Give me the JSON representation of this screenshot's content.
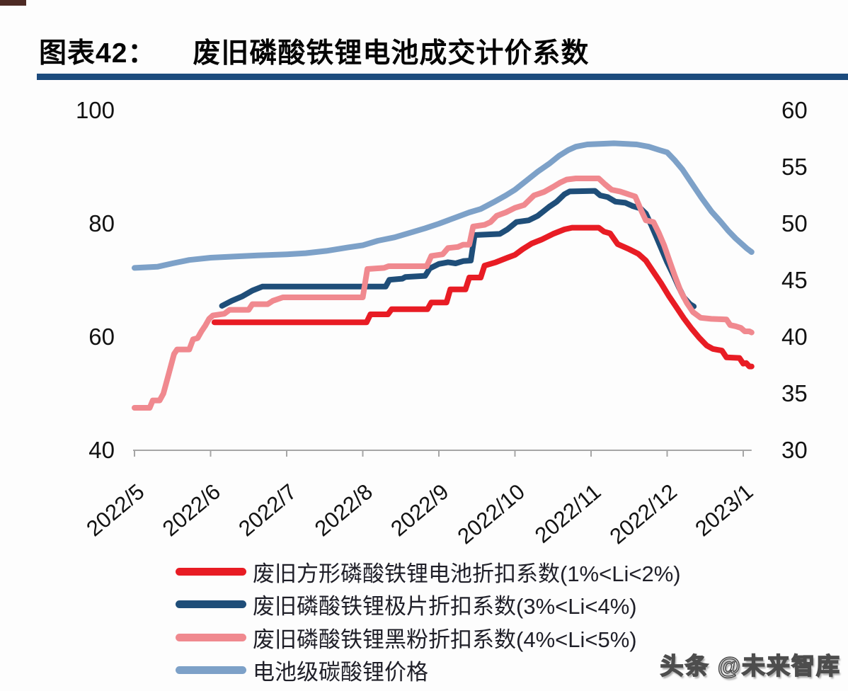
{
  "title": {
    "prefix": "图表42：",
    "text": "废旧磷酸铁锂电池成交计价系数"
  },
  "watermark": "头条 @未来智库",
  "chart_data": {
    "type": "line",
    "title": "废旧磷酸铁锂电池成交计价系数",
    "grid": false,
    "legend_position": "bottom-left",
    "x_axis": {
      "tick_labels": [
        "2022/5",
        "2022/6",
        "2022/7",
        "2022/8",
        "2022/9",
        "2022/10",
        "2022/11",
        "2022/12",
        "2023/1"
      ]
    },
    "left_axis": {
      "ticks": [
        "40",
        "60",
        "80",
        "100"
      ],
      "tick_values": [
        40,
        60,
        80,
        100
      ],
      "range": [
        40,
        100
      ]
    },
    "right_axis": {
      "ticks": [
        "30",
        "35",
        "40",
        "45",
        "50",
        "55",
        "60"
      ],
      "tick_values": [
        30,
        35,
        40,
        45,
        50,
        55,
        60
      ],
      "range": [
        30,
        60
      ]
    },
    "series": [
      {
        "name": "废旧方形磷酸铁锂电池折扣系数(1%<Li<2%)",
        "color": "#e81c24",
        "axis": "left",
        "points": [
          [
            1.05,
            62.6
          ],
          [
            3.05,
            62.6
          ],
          [
            3.1,
            64.0
          ],
          [
            3.33,
            64.0
          ],
          [
            3.38,
            64.9
          ],
          [
            3.85,
            64.9
          ],
          [
            3.9,
            66.1
          ],
          [
            4.1,
            66.1
          ],
          [
            4.15,
            68.4
          ],
          [
            4.35,
            68.4
          ],
          [
            4.4,
            70.5
          ],
          [
            4.55,
            70.5
          ],
          [
            4.6,
            72.6
          ],
          [
            4.75,
            73.2
          ],
          [
            4.9,
            74.0
          ],
          [
            5.0,
            74.5
          ],
          [
            5.1,
            75.5
          ],
          [
            5.22,
            76.5
          ],
          [
            5.35,
            77.2
          ],
          [
            5.5,
            78.2
          ],
          [
            5.65,
            79.0
          ],
          [
            5.75,
            79.3
          ],
          [
            6.1,
            79.3
          ],
          [
            6.17,
            78.6
          ],
          [
            6.25,
            78.3
          ],
          [
            6.35,
            76.4
          ],
          [
            6.5,
            75.5
          ],
          [
            6.62,
            74.7
          ],
          [
            6.72,
            73.5
          ],
          [
            6.82,
            71.5
          ],
          [
            6.92,
            69.5
          ],
          [
            7.02,
            67.3
          ],
          [
            7.12,
            65.3
          ],
          [
            7.22,
            63.3
          ],
          [
            7.32,
            61.5
          ],
          [
            7.42,
            59.9
          ],
          [
            7.52,
            58.5
          ],
          [
            7.6,
            57.9
          ],
          [
            7.72,
            57.6
          ],
          [
            7.78,
            56.4
          ],
          [
            7.95,
            56.3
          ],
          [
            8.0,
            55.3
          ],
          [
            8.04,
            55.4
          ],
          [
            8.08,
            54.8
          ],
          [
            8.11,
            54.8
          ]
        ]
      },
      {
        "name": "废旧磷酸铁锂极片折扣系数(3%<Li<4%)",
        "color": "#1f4e79",
        "axis": "left",
        "points": [
          [
            1.15,
            65.5
          ],
          [
            1.28,
            66.4
          ],
          [
            1.42,
            67.2
          ],
          [
            1.55,
            68.2
          ],
          [
            1.68,
            68.9
          ],
          [
            3.3,
            68.9
          ],
          [
            3.35,
            70.1
          ],
          [
            3.52,
            70.3
          ],
          [
            3.56,
            70.6
          ],
          [
            3.82,
            70.8
          ],
          [
            3.88,
            72.1
          ],
          [
            4.0,
            72.9
          ],
          [
            4.12,
            73.2
          ],
          [
            4.22,
            73.0
          ],
          [
            4.32,
            73.4
          ],
          [
            4.42,
            73.5
          ],
          [
            4.47,
            78.0
          ],
          [
            4.8,
            78.2
          ],
          [
            4.9,
            79.0
          ],
          [
            5.02,
            80.3
          ],
          [
            5.18,
            80.6
          ],
          [
            5.3,
            81.4
          ],
          [
            5.45,
            83.0
          ],
          [
            5.55,
            83.9
          ],
          [
            5.65,
            85.2
          ],
          [
            5.72,
            85.7
          ],
          [
            6.05,
            85.8
          ],
          [
            6.12,
            85.0
          ],
          [
            6.22,
            84.7
          ],
          [
            6.32,
            83.9
          ],
          [
            6.45,
            83.7
          ],
          [
            6.55,
            83.1
          ],
          [
            6.65,
            82.7
          ],
          [
            6.72,
            81.8
          ],
          [
            6.79,
            79.8
          ],
          [
            6.86,
            77.6
          ],
          [
            6.93,
            75.4
          ],
          [
            7.0,
            73.2
          ],
          [
            7.08,
            71.0
          ],
          [
            7.15,
            68.9
          ],
          [
            7.22,
            67.0
          ],
          [
            7.3,
            65.8
          ],
          [
            7.35,
            65.4
          ]
        ]
      },
      {
        "name": "废旧磷酸铁锂黑粉折扣系数(4%<Li<5%)",
        "color": "#f0898f",
        "axis": "left",
        "points": [
          [
            0,
            47.5
          ],
          [
            0.2,
            47.5
          ],
          [
            0.24,
            48.8
          ],
          [
            0.33,
            48.8
          ],
          [
            0.38,
            50.0
          ],
          [
            0.45,
            53.5
          ],
          [
            0.52,
            57.0
          ],
          [
            0.56,
            57.8
          ],
          [
            0.72,
            57.8
          ],
          [
            0.77,
            59.6
          ],
          [
            0.83,
            59.8
          ],
          [
            0.88,
            61.0
          ],
          [
            0.93,
            62.0
          ],
          [
            0.98,
            63.2
          ],
          [
            1.03,
            63.8
          ],
          [
            1.18,
            64.1
          ],
          [
            1.25,
            64.8
          ],
          [
            1.5,
            64.8
          ],
          [
            1.55,
            65.8
          ],
          [
            1.75,
            65.8
          ],
          [
            1.82,
            66.4
          ],
          [
            1.95,
            67.0
          ],
          [
            3.0,
            67.0
          ],
          [
            3.06,
            72.0
          ],
          [
            3.28,
            72.2
          ],
          [
            3.34,
            72.5
          ],
          [
            3.84,
            72.5
          ],
          [
            3.9,
            74.3
          ],
          [
            4.05,
            74.6
          ],
          [
            4.12,
            75.7
          ],
          [
            4.25,
            75.9
          ],
          [
            4.32,
            76.3
          ],
          [
            4.4,
            76.3
          ],
          [
            4.45,
            79.5
          ],
          [
            4.6,
            79.8
          ],
          [
            4.68,
            80.3
          ],
          [
            4.76,
            81.4
          ],
          [
            4.88,
            82.0
          ],
          [
            5.0,
            82.8
          ],
          [
            5.12,
            83.3
          ],
          [
            5.25,
            85.0
          ],
          [
            5.38,
            85.6
          ],
          [
            5.5,
            86.5
          ],
          [
            5.6,
            87.3
          ],
          [
            5.68,
            87.8
          ],
          [
            5.8,
            88.0
          ],
          [
            6.1,
            88.0
          ],
          [
            6.18,
            87.0
          ],
          [
            6.27,
            86.0
          ],
          [
            6.38,
            85.7
          ],
          [
            6.58,
            84.8
          ],
          [
            6.66,
            82.3
          ],
          [
            6.72,
            80.6
          ],
          [
            6.82,
            80.3
          ],
          [
            6.89,
            78.4
          ],
          [
            6.96,
            76.2
          ],
          [
            7.03,
            73.5
          ],
          [
            7.1,
            70.8
          ],
          [
            7.18,
            68.0
          ],
          [
            7.26,
            66.0
          ],
          [
            7.34,
            64.4
          ],
          [
            7.44,
            63.4
          ],
          [
            7.58,
            63.2
          ],
          [
            7.78,
            63.1
          ],
          [
            7.83,
            62.1
          ],
          [
            7.9,
            61.9
          ],
          [
            7.97,
            61.6
          ],
          [
            8.02,
            61.0
          ],
          [
            8.08,
            61.0
          ],
          [
            8.11,
            60.8
          ]
        ]
      },
      {
        "name": "电池级碳酸锂价格",
        "color": "#7da1c8",
        "axis": "right",
        "points": [
          [
            0,
            46.1
          ],
          [
            0.3,
            46.2
          ],
          [
            0.5,
            46.5
          ],
          [
            0.72,
            46.8
          ],
          [
            1.0,
            47.0
          ],
          [
            1.3,
            47.1
          ],
          [
            1.62,
            47.2
          ],
          [
            2.0,
            47.3
          ],
          [
            2.25,
            47.4
          ],
          [
            2.52,
            47.6
          ],
          [
            2.8,
            47.9
          ],
          [
            3.0,
            48.1
          ],
          [
            3.2,
            48.5
          ],
          [
            3.42,
            48.8
          ],
          [
            3.62,
            49.2
          ],
          [
            3.82,
            49.6
          ],
          [
            4.0,
            50.0
          ],
          [
            4.2,
            50.5
          ],
          [
            4.4,
            51.0
          ],
          [
            4.55,
            51.3
          ],
          [
            4.72,
            51.9
          ],
          [
            4.88,
            52.5
          ],
          [
            5.0,
            53.0
          ],
          [
            5.15,
            53.8
          ],
          [
            5.3,
            54.6
          ],
          [
            5.45,
            55.3
          ],
          [
            5.58,
            56.0
          ],
          [
            5.7,
            56.5
          ],
          [
            5.8,
            56.8
          ],
          [
            5.95,
            57.0
          ],
          [
            6.3,
            57.1
          ],
          [
            6.6,
            57.0
          ],
          [
            6.76,
            56.8
          ],
          [
            6.9,
            56.5
          ],
          [
            7.0,
            56.3
          ],
          [
            7.1,
            55.6
          ],
          [
            7.2,
            54.8
          ],
          [
            7.32,
            53.6
          ],
          [
            7.45,
            52.3
          ],
          [
            7.58,
            51.1
          ],
          [
            7.7,
            50.2
          ],
          [
            7.8,
            49.4
          ],
          [
            7.9,
            48.7
          ],
          [
            8.0,
            48.1
          ],
          [
            8.05,
            47.8
          ],
          [
            8.11,
            47.5
          ]
        ]
      }
    ],
    "colors": {
      "title_bar": "#1c4b7d",
      "axis_line": "#a6a6a6",
      "axis_text": "#121212"
    }
  }
}
